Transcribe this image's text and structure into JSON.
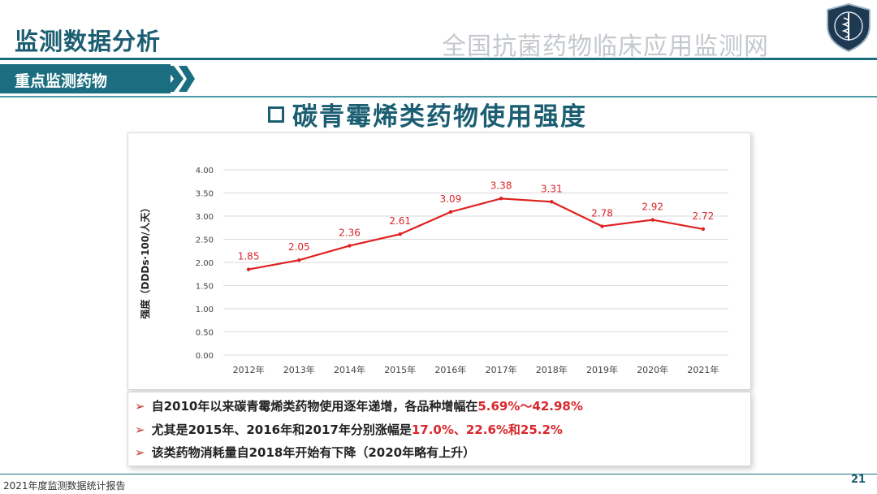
{
  "header": {
    "title": "监测数据分析",
    "org": "全国抗菌药物临床应用监测网",
    "section": "重点监测药物"
  },
  "colors": {
    "accent": "#1b6e80",
    "line": "#e02020",
    "label": "#d9262a"
  },
  "chart_data": {
    "type": "line",
    "title": "碳青霉烯类药物使用强度",
    "ylabel": "强度（DDDs·100/人天）",
    "xlabel": "",
    "ylim": [
      0,
      4
    ],
    "yticks": [
      "0.00",
      "0.50",
      "1.00",
      "1.50",
      "2.00",
      "2.50",
      "3.00",
      "3.50",
      "4.00"
    ],
    "categories": [
      "2012年",
      "2013年",
      "2014年",
      "2015年",
      "2016年",
      "2017年",
      "2018年",
      "2019年",
      "2020年",
      "2021年"
    ],
    "values": [
      1.85,
      2.05,
      2.36,
      2.61,
      3.09,
      3.38,
      3.31,
      2.78,
      2.92,
      2.72
    ],
    "value_labels": [
      "1.85",
      "2.05",
      "2.36",
      "2.61",
      "3.09",
      "3.38",
      "3.31",
      "2.78",
      "2.92",
      "2.72"
    ],
    "grid": true
  },
  "bullets": [
    {
      "text": "自2010年以来碳青霉烯类药物使用逐年递增，各品种增幅在",
      "highlight": "5.69%～42.98%",
      "tail": ""
    },
    {
      "text": "尤其是2015年、2016年和2017年分别涨幅是",
      "highlight": "17.0%、22.6%和25.2%",
      "tail": ""
    },
    {
      "text": "该类药物消耗量自2018年开始有下降（2020年略有上升）",
      "highlight": "",
      "tail": ""
    }
  ],
  "footer": {
    "text": "2021年度监测数据统计报告",
    "page": "21"
  }
}
